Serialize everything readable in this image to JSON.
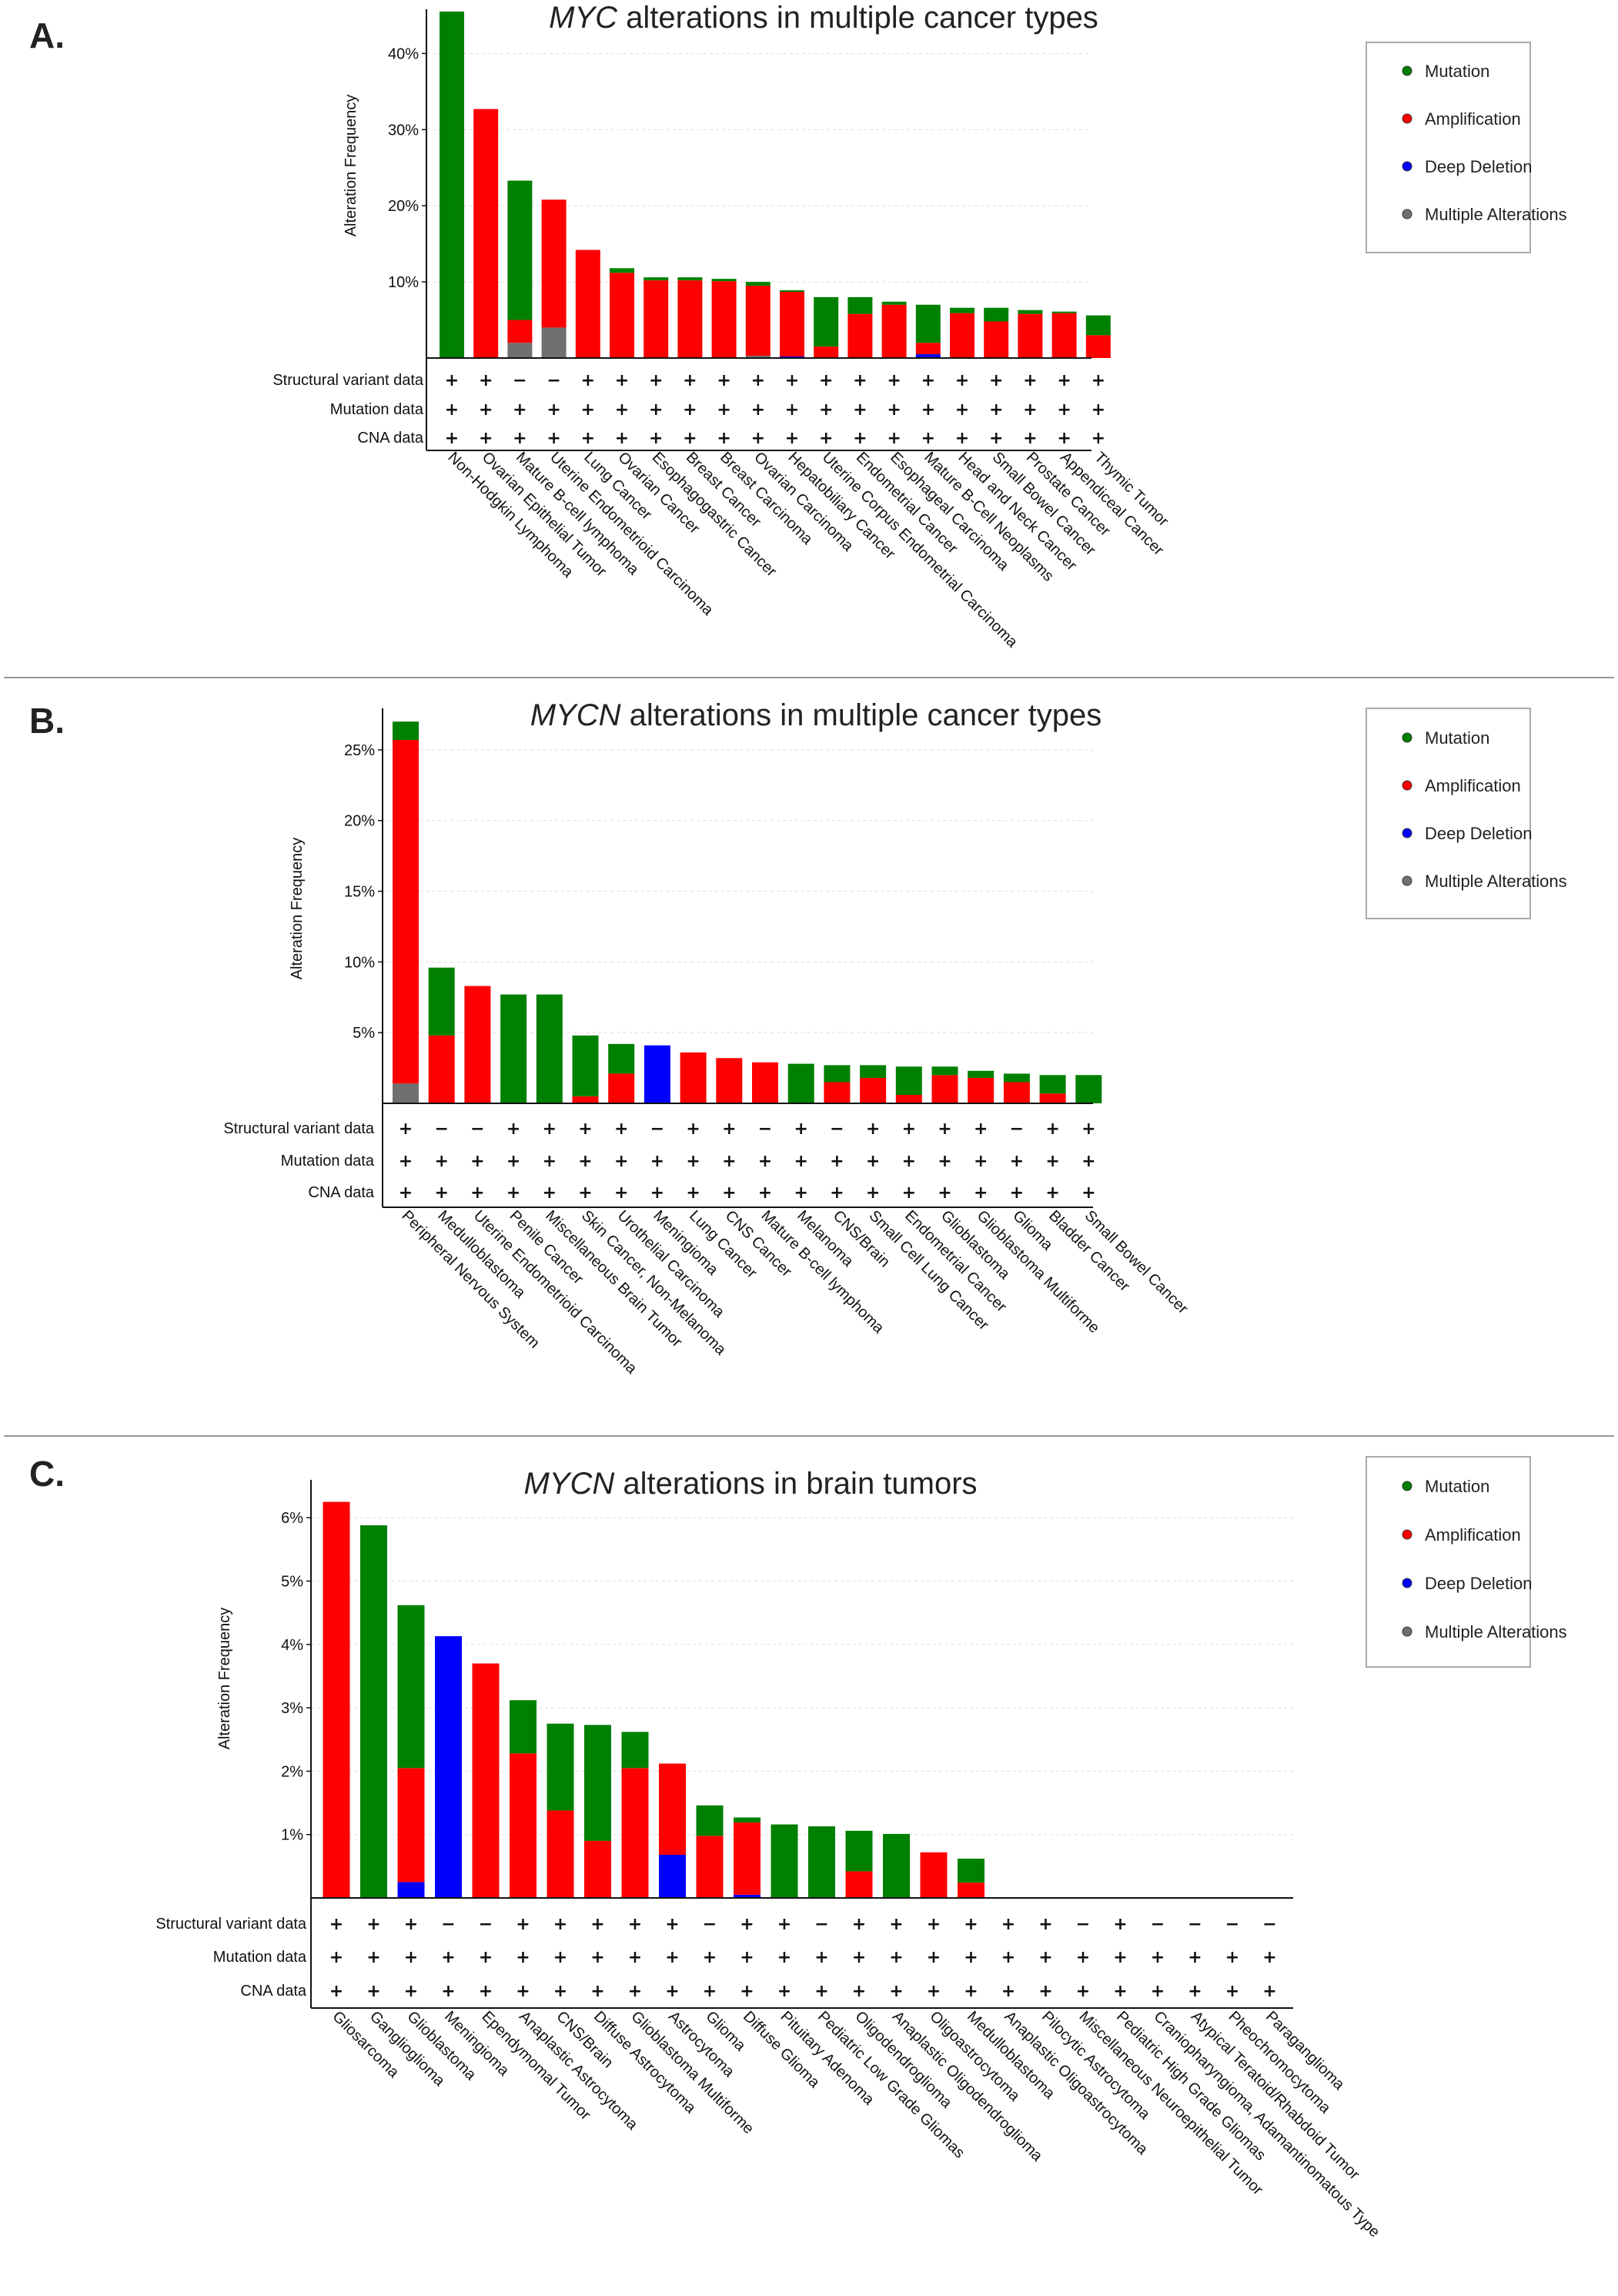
{
  "colors": {
    "mutation": "#008000",
    "amplification": "#ff0000",
    "deep_deletion": "#0000ff",
    "multiple": "#707070",
    "grid": "#dddddd",
    "separator": "#999999"
  },
  "legend": {
    "items": [
      {
        "key": "mutation",
        "label": "Mutation"
      },
      {
        "key": "amplification",
        "label": "Amplification"
      },
      {
        "key": "deep_deletion",
        "label": "Deep Deletion"
      },
      {
        "key": "multiple",
        "label": "Multiple Alterations"
      }
    ]
  },
  "row_labels": [
    "Structural variant data",
    "Mutation data",
    "CNA data"
  ],
  "chart_data": [
    {
      "type": "bar",
      "stacked": true,
      "panel": "A.",
      "title_italic": "MYC",
      "title_rest": " alterations in multiple cancer types",
      "ylabel": "Alteration Frequency",
      "ylim": [
        0,
        45
      ],
      "yticks": [
        10,
        20,
        30,
        40
      ],
      "yticklabels": [
        "10%",
        "20%",
        "30%",
        "40%"
      ],
      "categories": [
        "Non-Hodgkin Lymphoma",
        "Ovarian Epithelial Tumor",
        "Mature B-cell lymphoma",
        "Uterine Endometrioid Carcinoma",
        "Lung Cancer",
        "Ovarian Cancer",
        "Esophagogastric Cancer",
        "Breast Cancer",
        "Breast Carcinoma",
        "Ovarian Carcinoma",
        "Hepatobiliary Cancer",
        "Uterine Corpus Endometrial Carcinoma",
        "Endometrial Cancer",
        "Esophageal Carcinoma",
        "Mature B-Cell Neoplasms",
        "Head and Neck Cancer",
        "Small Bowel Cancer",
        "Prostate Cancer",
        "Appendiceal Cancer",
        "Thymic Tumor"
      ],
      "series": [
        {
          "name": "Multiple Alterations",
          "key": "multiple",
          "values": [
            0,
            0,
            2,
            4,
            0,
            0,
            0,
            0,
            0,
            0.3,
            0,
            0,
            0,
            0,
            0,
            0,
            0,
            0,
            0,
            0
          ]
        },
        {
          "name": "Deep Deletion",
          "key": "deep_deletion",
          "values": [
            0,
            0,
            0,
            0,
            0,
            0,
            0,
            0,
            0,
            0,
            0.2,
            0,
            0,
            0,
            0.5,
            0,
            0,
            0,
            0,
            0
          ]
        },
        {
          "name": "Amplification",
          "key": "amplification",
          "values": [
            0,
            32.7,
            3,
            16.8,
            14.2,
            11.2,
            10.2,
            10.2,
            10.1,
            9.2,
            8.5,
            1.5,
            5.8,
            7,
            1.5,
            5.9,
            4.8,
            5.8,
            5.9,
            3
          ]
        },
        {
          "name": "Mutation",
          "key": "mutation",
          "values": [
            45.5,
            0,
            18.3,
            0,
            0,
            0.6,
            0.4,
            0.4,
            0.3,
            0.5,
            0.2,
            6.5,
            2.2,
            0.4,
            5,
            0.7,
            1.8,
            0.5,
            0.2,
            2.6
          ]
        }
      ],
      "table": [
        [
          "+",
          "+",
          "−",
          "−",
          "+",
          "+",
          "+",
          "+",
          "+",
          "+",
          "+",
          "+",
          "+",
          "+",
          "+",
          "+",
          "+",
          "+",
          "+",
          "+"
        ],
        [
          "+",
          "+",
          "+",
          "+",
          "+",
          "+",
          "+",
          "+",
          "+",
          "+",
          "+",
          "+",
          "+",
          "+",
          "+",
          "+",
          "+",
          "+",
          "+",
          "+"
        ],
        [
          "+",
          "+",
          "+",
          "+",
          "+",
          "+",
          "+",
          "+",
          "+",
          "+",
          "+",
          "+",
          "+",
          "+",
          "+",
          "+",
          "+",
          "+",
          "+",
          "+"
        ]
      ]
    },
    {
      "type": "bar",
      "stacked": true,
      "panel": "B.",
      "title_italic": "MYCN",
      "title_rest": " alterations in multiple cancer types",
      "ylabel": "Alteration Frequency",
      "ylim": [
        0,
        27.5
      ],
      "yticks": [
        5,
        10,
        15,
        20,
        25
      ],
      "yticklabels": [
        "5%",
        "10%",
        "15%",
        "20%",
        "25%"
      ],
      "categories": [
        "Peripheral Nervous System",
        "Medulloblastoma",
        "Uterine Endometrioid Carcinoma",
        "Penile Cancer",
        "Miscellaneous Brain Tumor",
        "Skin Cancer, Non-Melanoma",
        "Urothelial Carcinoma",
        "Meningioma",
        "Lung Cancer",
        "CNS Cancer",
        "Mature B-cell lymphoma",
        "Melanoma",
        "CNS/Brain",
        "Small Cell Lung Cancer",
        "Endometrial Cancer",
        "Glioblastoma",
        "Glioblastoma Multiforme",
        "Glioma",
        "Bladder Cancer",
        "Small Bowel Cancer"
      ],
      "series": [
        {
          "name": "Multiple Alterations",
          "key": "multiple",
          "values": [
            1.4,
            0,
            0,
            0,
            0,
            0,
            0,
            0,
            0,
            0,
            0,
            0,
            0,
            0,
            0,
            0,
            0,
            0,
            0,
            0
          ]
        },
        {
          "name": "Deep Deletion",
          "key": "deep_deletion",
          "values": [
            0,
            0,
            0,
            0,
            0,
            0,
            0,
            4.1,
            0,
            0,
            0,
            0,
            0,
            0,
            0,
            0,
            0,
            0,
            0,
            0
          ]
        },
        {
          "name": "Amplification",
          "key": "amplification",
          "values": [
            24.3,
            4.8,
            8.3,
            0,
            0,
            0.5,
            2.1,
            0,
            3.6,
            3.2,
            2.9,
            0,
            1.5,
            1.8,
            0.6,
            2,
            1.8,
            1.5,
            0.7,
            0
          ]
        },
        {
          "name": "Mutation",
          "key": "mutation",
          "values": [
            1.3,
            4.8,
            0,
            7.7,
            7.7,
            4.3,
            2.1,
            0,
            0,
            0,
            0,
            2.8,
            1.2,
            0.9,
            2,
            0.6,
            0.5,
            0.6,
            1.3,
            2
          ]
        }
      ],
      "table": [
        [
          "+",
          "−",
          "−",
          "+",
          "+",
          "+",
          "+",
          "−",
          "+",
          "+",
          "−",
          "+",
          "−",
          "+",
          "+",
          "+",
          "+",
          "−",
          "+",
          "+"
        ],
        [
          "+",
          "+",
          "+",
          "+",
          "+",
          "+",
          "+",
          "+",
          "+",
          "+",
          "+",
          "+",
          "+",
          "+",
          "+",
          "+",
          "+",
          "+",
          "+",
          "+"
        ],
        [
          "+",
          "+",
          "+",
          "+",
          "+",
          "+",
          "+",
          "+",
          "+",
          "+",
          "+",
          "+",
          "+",
          "+",
          "+",
          "+",
          "+",
          "+",
          "+",
          "+"
        ]
      ]
    },
    {
      "type": "bar",
      "stacked": true,
      "panel": "C.",
      "title_italic": "MYCN",
      "title_rest": " alterations in brain tumors",
      "ylabel": "Alteration Frequency",
      "ylim": [
        0,
        6.5
      ],
      "yticks": [
        1,
        2,
        3,
        4,
        5,
        6
      ],
      "yticklabels": [
        "1%",
        "2%",
        "3%",
        "4%",
        "5%",
        "6%"
      ],
      "categories": [
        "Gliosarcoma",
        "Ganglioglioma",
        "Glioblastoma",
        "Meningioma",
        "Ependymomal Tumor",
        "Anaplastic Astrocytoma",
        "CNS/Brain",
        "Diffuse Astrocytoma",
        "Glioblastoma Multiforme",
        "Astrocytoma",
        "Glioma",
        "Diffuse Glioma",
        "Pituitary Adenoma",
        "Pediatric Low Grade Gliomas",
        "Oligodendroglioma",
        "Anaplastic Oligodendroglioma",
        "Oligoastrocytoma",
        "Medulloblastoma",
        "Anaplastic Oligoastrocytoma",
        "Pilocytic Astrocytoma",
        "Miscellaneous Neuroepithelial Tumor",
        "Pediatric High Grade Gliomas",
        "Craniopharyngioma, Adamantinomatous Type",
        "Atypical Teratoid/Rhabdoid Tumor",
        "Pheochromocytoma",
        "Paraganglioma"
      ],
      "series": [
        {
          "name": "Multiple Alterations",
          "key": "multiple",
          "values": [
            0,
            0,
            0,
            0,
            0,
            0,
            0,
            0,
            0,
            0,
            0,
            0,
            0,
            0,
            0,
            0,
            0,
            0,
            0,
            0,
            0,
            0,
            0,
            0,
            0,
            0
          ]
        },
        {
          "name": "Deep Deletion",
          "key": "deep_deletion",
          "values": [
            0,
            0,
            0.25,
            4.13,
            0,
            0,
            0,
            0,
            0,
            0.68,
            0,
            0.05,
            0,
            0,
            0,
            0,
            0,
            0,
            0,
            0,
            0,
            0,
            0,
            0,
            0,
            0
          ]
        },
        {
          "name": "Amplification",
          "key": "amplification",
          "values": [
            6.25,
            0,
            1.8,
            0,
            3.7,
            2.28,
            1.38,
            0.9,
            2.05,
            1.44,
            0.98,
            1.14,
            0,
            0,
            0.42,
            0,
            0.72,
            0.24,
            0,
            0,
            0,
            0,
            0,
            0,
            0,
            0
          ]
        },
        {
          "name": "Mutation",
          "key": "mutation",
          "values": [
            0,
            5.88,
            2.57,
            0,
            0,
            0.84,
            1.37,
            1.83,
            0.57,
            0,
            0.48,
            0.08,
            1.16,
            1.13,
            0.64,
            1.01,
            0,
            0.38,
            0,
            0,
            0,
            0,
            0,
            0,
            0,
            0
          ]
        }
      ],
      "table": [
        [
          "+",
          "+",
          "+",
          "−",
          "−",
          "+",
          "+",
          "+",
          "+",
          "+",
          "−",
          "+",
          "+",
          "−",
          "+",
          "+",
          "+",
          "+",
          "+",
          "+",
          "−",
          "+",
          "−",
          "−",
          "−",
          "−"
        ],
        [
          "+",
          "+",
          "+",
          "+",
          "+",
          "+",
          "+",
          "+",
          "+",
          "+",
          "+",
          "+",
          "+",
          "+",
          "+",
          "+",
          "+",
          "+",
          "+",
          "+",
          "+",
          "+",
          "+",
          "+",
          "+",
          "+"
        ],
        [
          "+",
          "+",
          "+",
          "+",
          "+",
          "+",
          "+",
          "+",
          "+",
          "+",
          "+",
          "+",
          "+",
          "+",
          "+",
          "+",
          "+",
          "+",
          "+",
          "+",
          "+",
          "+",
          "+",
          "+",
          "+",
          "+"
        ]
      ]
    }
  ]
}
